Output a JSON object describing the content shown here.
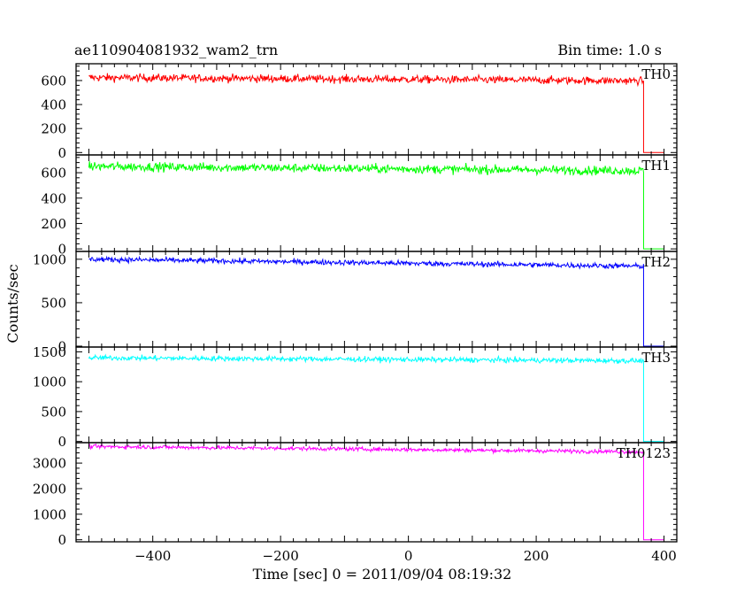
{
  "header": {
    "title": "ae110904081932_wam2_trn",
    "bin_time": "Bin time: 1.0 s"
  },
  "axes": {
    "xlabel": "Time [sec] 0 = 2011/09/04 08:19:32",
    "ylabel": "Counts/sec"
  },
  "chart_data": {
    "type": "line",
    "title": "ae110904081932_wam2_trn",
    "xlabel": "Time [sec] 0 = 2011/09/04 08:19:32",
    "ylabel": "Counts/sec",
    "xlim": [
      -520,
      420
    ],
    "x_ticks": [
      -400,
      -200,
      0,
      200,
      400
    ],
    "x_tick_labels": [
      "−400",
      "−200",
      "0",
      "200",
      "400"
    ],
    "series": [
      {
        "name": "TH0",
        "color": "#ff0000",
        "ylim": [
          -20,
          740
        ],
        "ticks": [
          0,
          200,
          400,
          600
        ],
        "tick_labels": [
          "0",
          "200",
          "400",
          "600"
        ],
        "start_level": 625,
        "end_level": 598,
        "noise": 30,
        "x_start": -500,
        "x_drop": 368,
        "x_end": 400
      },
      {
        "name": "TH1",
        "color": "#00ff00",
        "ylim": [
          -20,
          740
        ],
        "ticks": [
          0,
          200,
          400,
          600
        ],
        "tick_labels": [
          "0",
          "200",
          "400",
          "600"
        ],
        "start_level": 650,
        "end_level": 615,
        "noise": 32,
        "x_start": -500,
        "x_drop": 368,
        "x_end": 400
      },
      {
        "name": "TH2",
        "color": "#0000ff",
        "ylim": [
          -10,
          1090
        ],
        "ticks": [
          0,
          500,
          1000
        ],
        "tick_labels": [
          "0",
          "500",
          "1000"
        ],
        "start_level": 1000,
        "end_level": 920,
        "noise": 28,
        "x_start": -500,
        "x_drop": 368,
        "x_end": 400
      },
      {
        "name": "TH3",
        "color": "#00ffff",
        "ylim": [
          -20,
          1580
        ],
        "ticks": [
          0,
          500,
          1000,
          1500
        ],
        "tick_labels": [
          "0",
          "500",
          "1000",
          "1500"
        ],
        "start_level": 1400,
        "end_level": 1350,
        "noise": 40,
        "x_start": -500,
        "x_drop": 368,
        "x_end": 400
      },
      {
        "name": "TH0123",
        "color": "#ff00ff",
        "ylim": [
          -80,
          3800
        ],
        "ticks": [
          0,
          1000,
          2000,
          3000
        ],
        "tick_labels": [
          "0",
          "1000",
          "2000",
          "3000"
        ],
        "start_level": 3650,
        "end_level": 3440,
        "noise": 70,
        "x_start": -500,
        "x_drop": 368,
        "x_end": 400
      }
    ]
  }
}
